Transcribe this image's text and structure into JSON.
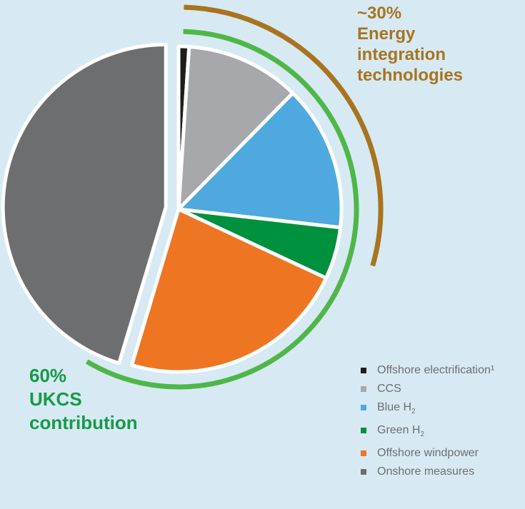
{
  "callouts": {
    "energy": {
      "lines": [
        "~30%",
        "Energy",
        "integration",
        "technologies"
      ],
      "color": "#a8741f"
    },
    "ukcs": {
      "lines": [
        "60%",
        "UKCS",
        "contribution"
      ],
      "color": "#169a46"
    }
  },
  "chart_data": {
    "type": "pie",
    "title": "",
    "start": "12 o'clock",
    "direction": "clockwise",
    "exploded_slice": "Onshore measures",
    "slices": [
      {
        "label": "Offshore electrification¹",
        "value": 1,
        "color": "#1d1d1d"
      },
      {
        "label": "CCS",
        "value": 11,
        "color": "#a6a8ab"
      },
      {
        "label": "Blue H₂",
        "value": 14,
        "color": "#4ea9de"
      },
      {
        "label": "Green H₂",
        "value": 5,
        "color": "#00913f"
      },
      {
        "label": "Offshore windpower",
        "value": 22,
        "color": "#ee7623"
      },
      {
        "label": "Onshore measures",
        "value": 44,
        "color": "#6d6e70"
      }
    ],
    "arcs": [
      {
        "name": "UKCS contribution",
        "share_percent": 60,
        "color": "#4fb748"
      },
      {
        "name": "Energy integration technologies",
        "share_percent": 30,
        "color": "#a8741f"
      }
    ]
  },
  "legend": [
    {
      "main": "Offshore electrification¹",
      "color": "#1d1d1d"
    },
    {
      "main": "CCS",
      "color": "#a6a8ab"
    },
    {
      "main": "Blue H",
      "sub": "2",
      "color": "#4ea9de"
    },
    {
      "main": "Green H",
      "sub": "2",
      "color": "#00913f"
    },
    {
      "main": "Offshore windpower",
      "color": "#ee7623"
    },
    {
      "main": "Onshore measures",
      "color": "#6d6e70"
    }
  ]
}
